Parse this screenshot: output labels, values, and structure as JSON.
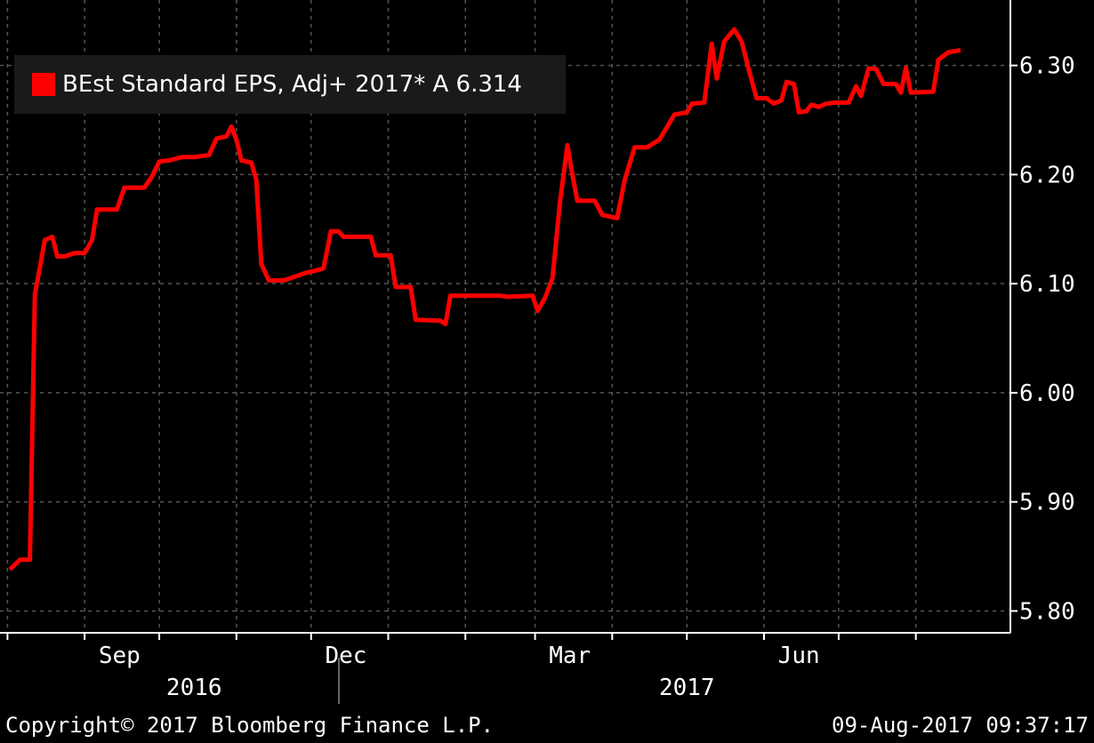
{
  "legend": {
    "label": "BEst Standard EPS, Adj+ 2017* A 6.314",
    "color": "#ff0000"
  },
  "footer": {
    "copyright": "Copyright© 2017 Bloomberg Finance L.P.",
    "timestamp": "09-Aug-2017 09:37:17"
  },
  "chart_data": {
    "type": "line",
    "y_ticks": [
      "5.80",
      "5.90",
      "6.00",
      "6.10",
      "6.20",
      "6.30"
    ],
    "ylim": [
      5.78,
      6.36
    ],
    "x_month_labels": [
      "Sep",
      "Dec",
      "Mar",
      "Jun"
    ],
    "x_year_labels": [
      "2016",
      "2017"
    ],
    "grid": true,
    "legend_position": "top-left",
    "series": [
      {
        "name": "BEst Standard EPS, Adj+ 2017* A 6.314",
        "color": "#ff0000",
        "points": [
          [
            "2016-08-02",
            5.838
          ],
          [
            "2016-08-06",
            5.847
          ],
          [
            "2016-08-10",
            5.847
          ],
          [
            "2016-08-12",
            6.09
          ],
          [
            "2016-08-16",
            6.14
          ],
          [
            "2016-08-19",
            6.143
          ],
          [
            "2016-08-21",
            6.125
          ],
          [
            "2016-08-24",
            6.125
          ],
          [
            "2016-08-28",
            6.128
          ],
          [
            "2016-09-01",
            6.128
          ],
          [
            "2016-09-04",
            6.14
          ],
          [
            "2016-09-06",
            6.168
          ],
          [
            "2016-09-14",
            6.168
          ],
          [
            "2016-09-17",
            6.188
          ],
          [
            "2016-09-25",
            6.188
          ],
          [
            "2016-09-28",
            6.198
          ],
          [
            "2016-10-01",
            6.212
          ],
          [
            "2016-10-05",
            6.213
          ],
          [
            "2016-10-10",
            6.216
          ],
          [
            "2016-10-15",
            6.216
          ],
          [
            "2016-10-21",
            6.218
          ],
          [
            "2016-10-24",
            6.233
          ],
          [
            "2016-10-28",
            6.235
          ],
          [
            "2016-10-30",
            6.244
          ],
          [
            "2016-11-01",
            6.232
          ],
          [
            "2016-11-03",
            6.213
          ],
          [
            "2016-11-07",
            6.211
          ],
          [
            "2016-11-09",
            6.195
          ],
          [
            "2016-11-11",
            6.118
          ],
          [
            "2016-11-14",
            6.103
          ],
          [
            "2016-11-20",
            6.103
          ],
          [
            "2016-11-24",
            6.106
          ],
          [
            "2016-11-29",
            6.11
          ],
          [
            "2016-12-03",
            6.112
          ],
          [
            "2016-12-06",
            6.114
          ],
          [
            "2016-12-09",
            6.148
          ],
          [
            "2016-12-12",
            6.148
          ],
          [
            "2016-12-14",
            6.143
          ],
          [
            "2016-12-25",
            6.143
          ],
          [
            "2016-12-27",
            6.126
          ],
          [
            "2017-01-02",
            6.126
          ],
          [
            "2017-01-04",
            6.097
          ],
          [
            "2017-01-10",
            6.097
          ],
          [
            "2017-01-12",
            6.067
          ],
          [
            "2017-01-22",
            6.066
          ],
          [
            "2017-01-24",
            6.063
          ],
          [
            "2017-01-26",
            6.089
          ],
          [
            "2017-02-15",
            6.089
          ],
          [
            "2017-02-18",
            6.088
          ],
          [
            "2017-02-28",
            6.089
          ],
          [
            "2017-03-02",
            6.075
          ],
          [
            "2017-03-05",
            6.087
          ],
          [
            "2017-03-08",
            6.105
          ],
          [
            "2017-03-11",
            6.175
          ],
          [
            "2017-03-14",
            6.227
          ],
          [
            "2017-03-16",
            6.2
          ],
          [
            "2017-03-18",
            6.176
          ],
          [
            "2017-03-25",
            6.176
          ],
          [
            "2017-03-28",
            6.163
          ],
          [
            "2017-04-03",
            6.16
          ],
          [
            "2017-04-06",
            6.195
          ],
          [
            "2017-04-10",
            6.225
          ],
          [
            "2017-04-15",
            6.225
          ],
          [
            "2017-04-20",
            6.232
          ],
          [
            "2017-04-26",
            6.255
          ],
          [
            "2017-05-01",
            6.257
          ],
          [
            "2017-05-03",
            6.265
          ],
          [
            "2017-05-08",
            6.266
          ],
          [
            "2017-05-11",
            6.32
          ],
          [
            "2017-05-13",
            6.288
          ],
          [
            "2017-05-16",
            6.322
          ],
          [
            "2017-05-20",
            6.333
          ],
          [
            "2017-05-23",
            6.322
          ],
          [
            "2017-05-26",
            6.295
          ],
          [
            "2017-05-29",
            6.27
          ],
          [
            "2017-06-02",
            6.27
          ],
          [
            "2017-06-05",
            6.265
          ],
          [
            "2017-06-08",
            6.268
          ],
          [
            "2017-06-10",
            6.285
          ],
          [
            "2017-06-13",
            6.283
          ],
          [
            "2017-06-15",
            6.257
          ],
          [
            "2017-06-18",
            6.258
          ],
          [
            "2017-06-20",
            6.264
          ],
          [
            "2017-06-23",
            6.262
          ],
          [
            "2017-06-26",
            6.265
          ],
          [
            "2017-06-30",
            6.266
          ],
          [
            "2017-07-05",
            6.266
          ],
          [
            "2017-07-08",
            6.281
          ],
          [
            "2017-07-10",
            6.272
          ],
          [
            "2017-07-13",
            6.297
          ],
          [
            "2017-07-16",
            6.297
          ],
          [
            "2017-07-19",
            6.283
          ],
          [
            "2017-07-24",
            6.283
          ],
          [
            "2017-07-26",
            6.275
          ],
          [
            "2017-07-28",
            6.298
          ],
          [
            "2017-07-30",
            6.275
          ],
          [
            "2017-08-08",
            6.276
          ],
          [
            "2017-08-10",
            6.305
          ],
          [
            "2017-08-14",
            6.312
          ],
          [
            "2017-08-19",
            6.314
          ]
        ]
      }
    ]
  }
}
